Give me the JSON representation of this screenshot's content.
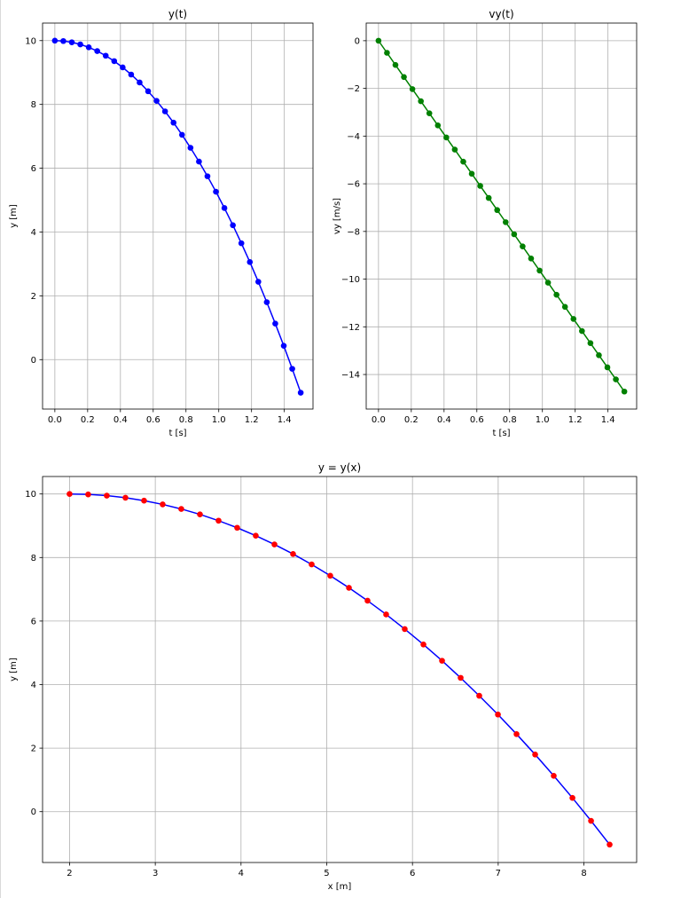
{
  "chart_data": [
    {
      "id": "yt",
      "type": "line",
      "title": "y(t)",
      "xlabel": "t [s]",
      "ylabel": "y [m]",
      "xlim": [
        -0.075,
        1.575
      ],
      "ylim": [
        -1.55,
        10.55
      ],
      "xticks": [
        0.0,
        0.2,
        0.4,
        0.6,
        0.8,
        1.0,
        1.2,
        1.4
      ],
      "xtick_labels": [
        "0.0",
        "0.2",
        "0.4",
        "0.6",
        "0.8",
        "1.0",
        "1.2",
        "1.4"
      ],
      "yticks": [
        0,
        2,
        4,
        6,
        8,
        10
      ],
      "ytick_labels": [
        "0",
        "2",
        "4",
        "6",
        "8",
        "10"
      ],
      "grid": true,
      "line_color": "#0000ff",
      "marker_color": "#0000ff",
      "series": [
        {
          "x": [
            0.0,
            0.0517,
            0.1034,
            0.1552,
            0.2069,
            0.2586,
            0.3103,
            0.3621,
            0.4138,
            0.4655,
            0.5172,
            0.569,
            0.6207,
            0.6724,
            0.7241,
            0.7759,
            0.8276,
            0.8793,
            0.931,
            0.9828,
            1.0345,
            1.0862,
            1.1379,
            1.1897,
            1.2414,
            1.2931,
            1.3448,
            1.3966,
            1.4483,
            1.5
          ],
          "y": [
            10.0,
            9.987,
            9.948,
            9.882,
            9.79,
            9.672,
            9.528,
            9.357,
            9.16,
            8.937,
            8.688,
            8.412,
            8.111,
            7.782,
            7.428,
            7.047,
            6.641,
            6.208,
            5.748,
            5.263,
            4.751,
            4.213,
            3.648,
            3.058,
            2.441,
            1.799,
            1.129,
            0.434,
            -0.288,
            -1.036
          ]
        }
      ]
    },
    {
      "id": "vyt",
      "type": "line",
      "title": "vy(t)",
      "xlabel": "t [s]",
      "ylabel": "vy [m/s]",
      "xlim": [
        -0.075,
        1.575
      ],
      "ylim": [
        -15.45,
        0.74
      ],
      "xticks": [
        0.0,
        0.2,
        0.4,
        0.6,
        0.8,
        1.0,
        1.2,
        1.4
      ],
      "xtick_labels": [
        "0.0",
        "0.2",
        "0.4",
        "0.6",
        "0.8",
        "1.0",
        "1.2",
        "1.4"
      ],
      "yticks": [
        0,
        -2,
        -4,
        -6,
        -8,
        -10,
        -12,
        -14
      ],
      "ytick_labels": [
        "0",
        "−2",
        "−4",
        "−6",
        "−8",
        "−10",
        "−12",
        "−14"
      ],
      "grid": true,
      "line_color": "#008000",
      "marker_color": "#008000",
      "series": [
        {
          "x": [
            0.0,
            0.0517,
            0.1034,
            0.1552,
            0.2069,
            0.2586,
            0.3103,
            0.3621,
            0.4138,
            0.4655,
            0.5172,
            0.569,
            0.6207,
            0.6724,
            0.7241,
            0.7759,
            0.8276,
            0.8793,
            0.931,
            0.9828,
            1.0345,
            1.0862,
            1.1379,
            1.1897,
            1.2414,
            1.2931,
            1.3448,
            1.3966,
            1.4483,
            1.5
          ],
          "y": [
            0.0,
            -0.507,
            -1.015,
            -1.522,
            -2.029,
            -2.537,
            -3.044,
            -3.552,
            -4.059,
            -4.567,
            -5.074,
            -5.581,
            -6.089,
            -6.596,
            -7.103,
            -7.611,
            -8.118,
            -8.626,
            -9.133,
            -9.641,
            -10.148,
            -10.655,
            -11.163,
            -11.67,
            -12.177,
            -12.685,
            -13.192,
            -13.7,
            -14.207,
            -14.715
          ]
        }
      ]
    },
    {
      "id": "yx",
      "type": "line",
      "title": "y = y(x)",
      "xlabel": "x [m]",
      "ylabel": "y [m]",
      "xlim": [
        1.685,
        8.615
      ],
      "ylim": [
        -1.6,
        10.55
      ],
      "xticks": [
        2,
        3,
        4,
        5,
        6,
        7,
        8
      ],
      "xtick_labels": [
        "2",
        "3",
        "4",
        "5",
        "6",
        "7",
        "8"
      ],
      "yticks": [
        0,
        2,
        4,
        6,
        8,
        10
      ],
      "ytick_labels": [
        "0",
        "2",
        "4",
        "6",
        "8",
        "10"
      ],
      "grid": true,
      "line_color": "#0000ff",
      "marker_color": "#ff0000",
      "series": [
        {
          "x": [
            2.0,
            2.217,
            2.434,
            2.652,
            2.869,
            3.086,
            3.303,
            3.521,
            3.738,
            3.955,
            4.172,
            4.39,
            4.607,
            4.824,
            5.041,
            5.259,
            5.476,
            5.693,
            5.91,
            6.128,
            6.345,
            6.562,
            6.779,
            6.997,
            7.214,
            7.431,
            7.648,
            7.866,
            8.083,
            8.3
          ],
          "y": [
            10.0,
            9.987,
            9.948,
            9.882,
            9.79,
            9.672,
            9.528,
            9.357,
            9.16,
            8.937,
            8.688,
            8.412,
            8.111,
            7.782,
            7.428,
            7.047,
            6.641,
            6.208,
            5.748,
            5.263,
            4.751,
            4.213,
            3.648,
            3.058,
            2.441,
            1.799,
            1.129,
            0.434,
            -0.288,
            -1.036
          ]
        }
      ]
    }
  ]
}
